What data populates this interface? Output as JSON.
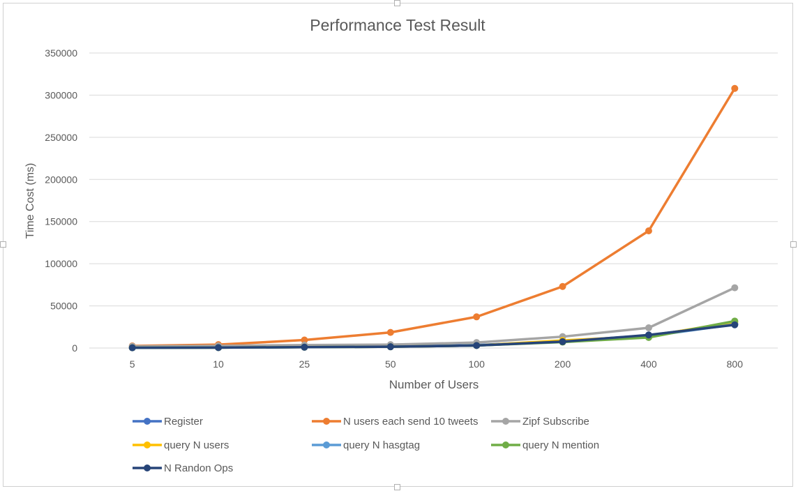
{
  "chart_data": {
    "type": "line",
    "title": "Performance Test Result",
    "xlabel": "Number of Users",
    "ylabel": "Time Cost (ms)",
    "categories": [
      "5",
      "10",
      "25",
      "50",
      "100",
      "200",
      "400",
      "800"
    ],
    "ylim": [
      0,
      350000
    ],
    "yticks": [
      0,
      50000,
      100000,
      150000,
      200000,
      250000,
      300000,
      350000
    ],
    "ytick_labels": [
      "0",
      "50000",
      "100000",
      "150000",
      "200000",
      "250000",
      "300000",
      "350000"
    ],
    "grid": true,
    "legend_position": "bottom",
    "series": [
      {
        "name": "Register",
        "color": "#4472c4",
        "values": [
          300,
          500,
          1200,
          1800,
          3500,
          8000,
          15000,
          29000
        ]
      },
      {
        "name": "N users each send 10 tweets",
        "color": "#ed7d31",
        "values": [
          2500,
          4000,
          9500,
          18500,
          37000,
          73000,
          139000,
          308000
        ]
      },
      {
        "name": "Zipf Subscribe",
        "color": "#a5a5a5",
        "values": [
          2000,
          2600,
          3500,
          4000,
          6500,
          13500,
          24000,
          71500
        ]
      },
      {
        "name": "query N users",
        "color": "#ffc000",
        "values": [
          300,
          500,
          1000,
          1500,
          3000,
          9000,
          14000,
          31000
        ]
      },
      {
        "name": "query N hasgtag",
        "color": "#5b9bd5",
        "values": [
          300,
          500,
          1000,
          1500,
          3000,
          7500,
          14000,
          28000
        ]
      },
      {
        "name": "query N mention",
        "color": "#70ad47",
        "values": [
          300,
          500,
          1000,
          1500,
          3000,
          7000,
          12500,
          32000
        ]
      },
      {
        "name": "N Randon Ops",
        "color": "#264478",
        "values": [
          300,
          500,
          1000,
          1500,
          3000,
          7500,
          15500,
          27500
        ]
      }
    ]
  }
}
